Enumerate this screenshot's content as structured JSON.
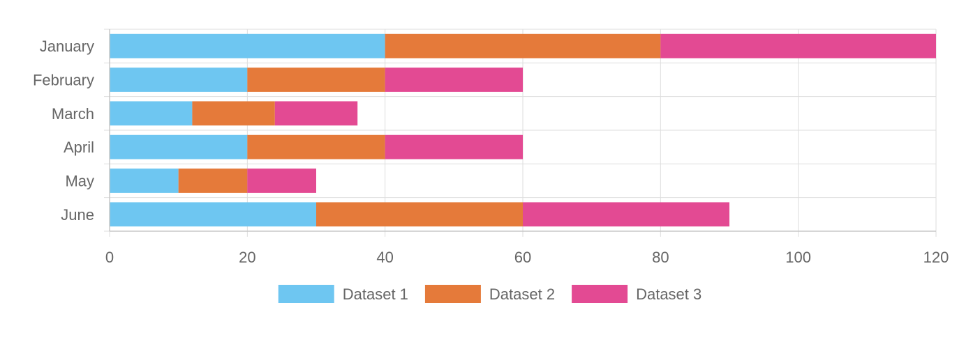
{
  "chart_data": {
    "type": "bar",
    "orientation": "horizontal",
    "stacked": true,
    "title": "",
    "xlabel": "",
    "ylabel": "",
    "categories": [
      "January",
      "February",
      "March",
      "April",
      "May",
      "June"
    ],
    "series": [
      {
        "name": "Dataset 1",
        "color": "#6ec6f1",
        "values": [
          40,
          20,
          12,
          20,
          10,
          30
        ]
      },
      {
        "name": "Dataset 2",
        "color": "#e57a3a",
        "values": [
          40,
          20,
          12,
          20,
          10,
          30
        ]
      },
      {
        "name": "Dataset 3",
        "color": "#e34a93",
        "values": [
          40,
          20,
          12,
          20,
          10,
          30
        ]
      }
    ],
    "xlim": [
      0,
      120
    ],
    "xticks": [
      0,
      20,
      40,
      60,
      80,
      100,
      120
    ],
    "grid": true,
    "legend_position": "bottom"
  }
}
